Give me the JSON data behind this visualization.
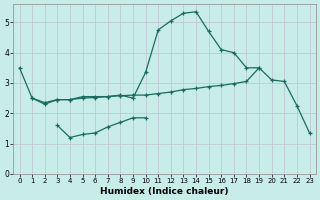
{
  "xlabel": "Humidex (Indice chaleur)",
  "bg_color": "#c8ece8",
  "grid_color": "#c0c8d4",
  "line_color": "#1a6b60",
  "xlim": [
    -0.5,
    23.5
  ],
  "ylim": [
    0,
    5.6
  ],
  "yticks": [
    0,
    1,
    2,
    3,
    4,
    5
  ],
  "xticks": [
    0,
    1,
    2,
    3,
    4,
    5,
    6,
    7,
    8,
    9,
    10,
    11,
    12,
    13,
    14,
    15,
    16,
    17,
    18,
    19,
    20,
    21,
    22,
    23
  ],
  "line1_x": [
    0,
    1,
    2,
    3,
    4,
    5,
    6,
    7,
    8,
    9,
    10,
    11,
    12,
    13,
    14,
    15,
    16,
    17,
    18,
    19
  ],
  "line1_y": [
    3.5,
    2.5,
    2.3,
    2.45,
    2.45,
    2.55,
    2.55,
    2.55,
    2.6,
    2.5,
    3.35,
    4.75,
    5.05,
    5.3,
    5.35,
    4.7,
    4.1,
    4.0,
    3.5,
    3.5
  ],
  "line2_x": [
    3,
    4,
    5,
    6,
    7,
    8,
    9,
    10
  ],
  "line2_y": [
    1.6,
    1.2,
    1.3,
    1.35,
    1.55,
    1.7,
    1.85,
    1.85
  ],
  "line3_x": [
    1,
    2,
    3,
    4,
    5,
    6,
    7,
    8,
    9,
    10,
    11,
    12,
    13,
    14,
    15,
    16,
    17,
    18,
    19,
    20,
    21,
    22,
    23
  ],
  "line3_y": [
    2.5,
    2.35,
    2.45,
    2.45,
    2.5,
    2.52,
    2.55,
    2.58,
    2.6,
    2.6,
    2.65,
    2.7,
    2.78,
    2.82,
    2.88,
    2.92,
    2.98,
    3.05,
    3.5,
    3.1,
    3.05,
    2.25,
    1.35
  ]
}
